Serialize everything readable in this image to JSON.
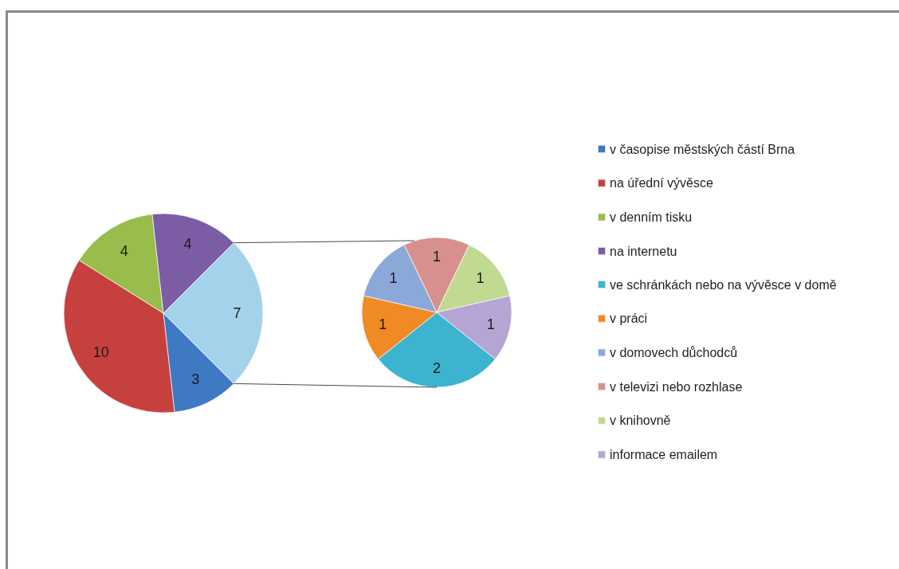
{
  "chart_data": [
    {
      "type": "pie",
      "categories": [
        "v časopise městských částí Brna",
        "na úřední vývěsce",
        "v denním tisku",
        "na internetu",
        null
      ],
      "values": [
        3,
        10,
        4,
        4,
        7
      ],
      "colors": [
        "#3f78c3",
        "#c6413e",
        "#98bd4c",
        "#7d5ca6",
        "#a3d3ea"
      ],
      "data_labels": true,
      "legend": "right"
    },
    {
      "type": "pie",
      "categories": [
        "ve schránkách nebo na vývěsce v domě",
        "v práci",
        "v domovech důchodců",
        "v televizi nebo rozhlase",
        "v knihovně",
        "informace emailem"
      ],
      "values": [
        2,
        1,
        1,
        1,
        1,
        1
      ],
      "colors": [
        "#3db4cf",
        "#f08a25",
        "#8aa9d9",
        "#d8908e",
        "#c1da92",
        "#b5a5d4"
      ],
      "data_labels": true,
      "legend": "right"
    }
  ]
}
